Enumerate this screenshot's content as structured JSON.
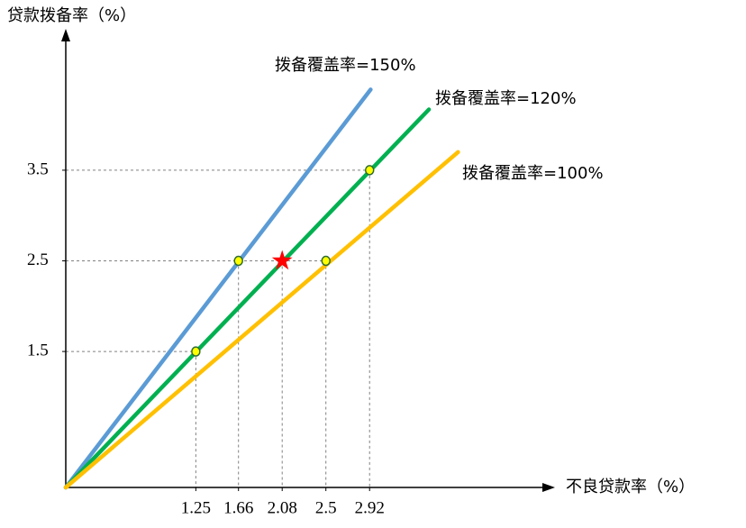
{
  "chart_data": {
    "type": "line",
    "x_label": "不良贷款率（%）",
    "y_label": "贷款拨备率（%）",
    "xlim": [
      0,
      4.65
    ],
    "ylim": [
      0,
      5
    ],
    "xticks": [
      1.25,
      1.66,
      2.08,
      2.5,
      2.92
    ],
    "yticks": [
      1.5,
      2.5,
      3.5
    ],
    "series": [
      {
        "name": "拨备覆盖率=150%",
        "color": "#5b9bd5",
        "x": [
          0,
          2.93
        ],
        "values": [
          0,
          4.39
        ]
      },
      {
        "name": "拨备覆盖率=120%",
        "color": "#00b050",
        "x": [
          0,
          3.49
        ],
        "values": [
          0,
          4.17
        ]
      },
      {
        "name": "拨备覆盖率=100%",
        "color": "#ffc000",
        "x": [
          0,
          3.77
        ],
        "values": [
          0,
          3.7
        ]
      }
    ],
    "markers": {
      "color": "#ffff00",
      "x": [
        1.25,
        1.66,
        2.5,
        2.92
      ],
      "values": [
        1.5,
        2.5,
        2.5,
        3.5
      ]
    },
    "highlight": {
      "color": "#ff0000",
      "x": 2.08,
      "y": 2.5
    }
  }
}
